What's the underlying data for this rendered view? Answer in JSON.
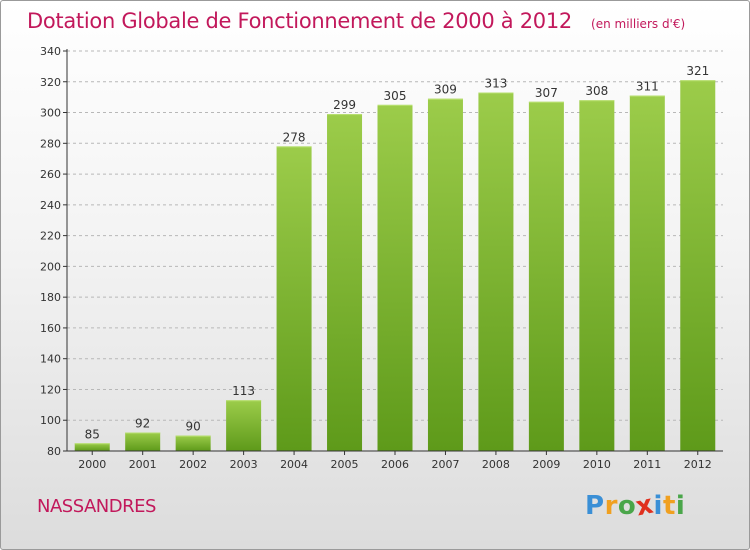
{
  "page": {
    "commune": "NASSANDRES"
  },
  "logo": {
    "text": "Proxiti",
    "letters": [
      {
        "char": "P",
        "color": "#3a8fd6"
      },
      {
        "char": "r",
        "color": "#f0a020"
      },
      {
        "char": "o",
        "color": "#4aa64a"
      },
      {
        "char": "x",
        "color": "#e0301e"
      },
      {
        "char": "i",
        "color": "#3a8fd6"
      },
      {
        "char": "t",
        "color": "#f0a020"
      },
      {
        "char": "i",
        "color": "#4aa64a"
      }
    ]
  },
  "colors": {
    "title": "#c2185b",
    "bar_top": "#9ccc4a",
    "bar_bottom": "#5e9a1a",
    "axis": "#333333",
    "grid": "#b8b8b8"
  },
  "chart_data": {
    "type": "bar",
    "title": "Dotation Globale de Fonctionnement de 2000 à 2012",
    "unit_label": "(en milliers d'€)",
    "xlabel": "",
    "ylabel": "",
    "categories": [
      "2000",
      "2001",
      "2002",
      "2003",
      "2004",
      "2005",
      "2006",
      "2007",
      "2008",
      "2009",
      "2010",
      "2011",
      "2012"
    ],
    "values": [
      85,
      92,
      90,
      113,
      278,
      299,
      305,
      309,
      313,
      307,
      308,
      311,
      321
    ],
    "ylim": [
      80,
      340
    ],
    "yticks": [
      80,
      100,
      120,
      140,
      160,
      180,
      200,
      220,
      240,
      260,
      280,
      300,
      320,
      340
    ],
    "grid": true,
    "data_labels": true,
    "legend": "none"
  }
}
